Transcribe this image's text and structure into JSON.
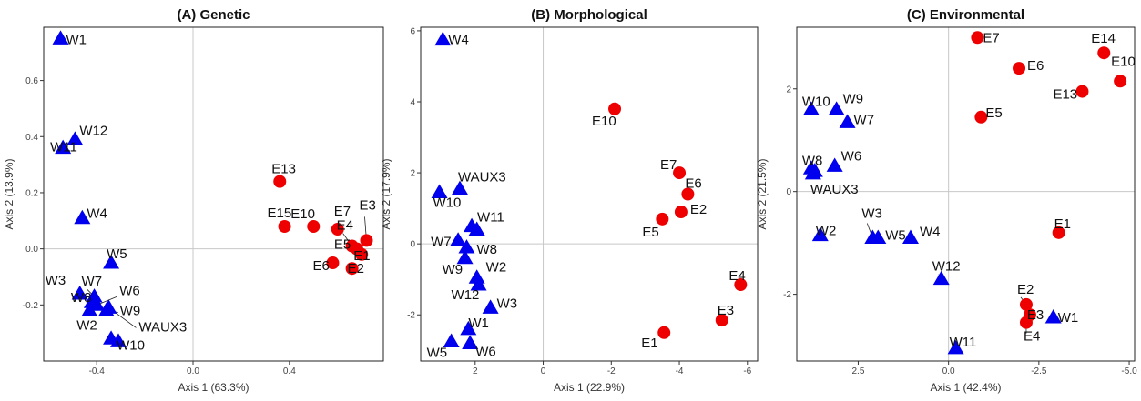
{
  "chart_data": [
    {
      "type": "scatter",
      "title": "(A) Genetic",
      "xlabel": "Axis 1 (63.3%)",
      "ylabel": "Axis 2 (13.9%)",
      "xlim": [
        -0.62,
        0.79
      ],
      "ylim": [
        -0.4,
        0.79
      ],
      "reverse_x": false,
      "xticks": [
        -0.4,
        0.0,
        0.4
      ],
      "xtick_labels": [
        "-0.4",
        "0.0",
        "0.4"
      ],
      "yticks": [
        -0.2,
        0.0,
        0.2,
        0.4,
        0.6
      ],
      "ytick_labels": [
        "-0.2",
        "0.0",
        "0.2",
        "0.4",
        "0.6"
      ],
      "grid": false,
      "zero_lines": true,
      "series": [
        {
          "group": "W",
          "marker": "triangle",
          "color": "#0000ee",
          "points": [
            {
              "label": "W1",
              "x": -0.55,
              "y": 0.75
            },
            {
              "label": "W12",
              "x": -0.49,
              "y": 0.39
            },
            {
              "label": "W11",
              "x": -0.54,
              "y": 0.36
            },
            {
              "label": "W4",
              "x": -0.46,
              "y": 0.11
            },
            {
              "label": "W5",
              "x": -0.34,
              "y": -0.05
            },
            {
              "label": "W3",
              "x": -0.47,
              "y": -0.16
            },
            {
              "label": "W8",
              "x": -0.42,
              "y": -0.19
            },
            {
              "label": "W7",
              "x": -0.41,
              "y": -0.17
            },
            {
              "label": "W6",
              "x": -0.4,
              "y": -0.2
            },
            {
              "label": "W9",
              "x": -0.36,
              "y": -0.22
            },
            {
              "label": "WAUX3",
              "x": -0.35,
              "y": -0.21
            },
            {
              "label": "W2",
              "x": -0.43,
              "y": -0.22
            },
            {
              "label": "W10",
              "x": -0.34,
              "y": -0.32
            },
            {
              "label": "",
              "x": -0.31,
              "y": -0.33
            }
          ]
        },
        {
          "group": "E",
          "marker": "circle",
          "color": "#ee0000",
          "points": [
            {
              "label": "E13",
              "x": 0.36,
              "y": 0.24
            },
            {
              "label": "E15",
              "x": 0.38,
              "y": 0.08
            },
            {
              "label": "E10",
              "x": 0.5,
              "y": 0.08
            },
            {
              "label": "E7",
              "x": 0.6,
              "y": 0.07
            },
            {
              "label": "E3",
              "x": 0.72,
              "y": 0.03
            },
            {
              "label": "E4",
              "x": 0.66,
              "y": 0.01
            },
            {
              "label": "E5",
              "x": 0.68,
              "y": 0.0
            },
            {
              "label": "E1",
              "x": 0.7,
              "y": -0.02
            },
            {
              "label": "E6",
              "x": 0.58,
              "y": -0.05
            },
            {
              "label": "E2",
              "x": 0.66,
              "y": -0.07
            }
          ]
        }
      ]
    },
    {
      "type": "scatter",
      "title": "(B) Morphological",
      "xlabel": "Axis 1 (22.9%)",
      "ylabel": "Axis 2 (17.9%)",
      "xlim": [
        3.6,
        -6.3
      ],
      "ylim": [
        -3.3,
        6.1
      ],
      "reverse_x": true,
      "xticks": [
        2,
        0,
        -2,
        -4,
        -6
      ],
      "xtick_labels": [
        "2",
        "0",
        "-2",
        "-4",
        "-6"
      ],
      "yticks": [
        -2,
        0,
        2,
        4,
        6
      ],
      "ytick_labels": [
        "-2",
        "0",
        "2",
        "4",
        "6"
      ],
      "grid": false,
      "zero_lines": true,
      "series": [
        {
          "group": "W",
          "marker": "triangle",
          "color": "#0000ee",
          "points": [
            {
              "label": "W4",
              "x": 2.95,
              "y": 5.75
            },
            {
              "label": "WAUX3",
              "x": 2.45,
              "y": 1.55
            },
            {
              "label": "W10",
              "x": 3.05,
              "y": 1.45
            },
            {
              "label": "W11",
              "x": 2.1,
              "y": 0.5
            },
            {
              "label": "",
              "x": 1.95,
              "y": 0.4
            },
            {
              "label": "W7",
              "x": 2.5,
              "y": 0.1
            },
            {
              "label": "W8",
              "x": 2.25,
              "y": -0.1
            },
            {
              "label": "W9",
              "x": 2.3,
              "y": -0.4
            },
            {
              "label": "W2",
              "x": 1.95,
              "y": -0.95
            },
            {
              "label": "W12",
              "x": 1.9,
              "y": -1.15
            },
            {
              "label": "W3",
              "x": 1.55,
              "y": -1.8
            },
            {
              "label": "W1",
              "x": 2.2,
              "y": -2.4
            },
            {
              "label": "W5",
              "x": 2.7,
              "y": -2.75
            },
            {
              "label": "W6",
              "x": 2.15,
              "y": -2.8
            }
          ]
        },
        {
          "group": "E",
          "marker": "circle",
          "color": "#ee0000",
          "points": [
            {
              "label": "E10",
              "x": -2.1,
              "y": 3.8
            },
            {
              "label": "E7",
              "x": -4.0,
              "y": 2.0
            },
            {
              "label": "E6",
              "x": -4.25,
              "y": 1.4
            },
            {
              "label": "E2",
              "x": -4.05,
              "y": 0.9
            },
            {
              "label": "E5",
              "x": -3.5,
              "y": 0.7
            },
            {
              "label": "E4",
              "x": -5.8,
              "y": -1.15
            },
            {
              "label": "E3",
              "x": -5.25,
              "y": -2.15
            },
            {
              "label": "E1",
              "x": -3.55,
              "y": -2.5
            }
          ]
        }
      ]
    },
    {
      "type": "scatter",
      "title": "(C) Environmental",
      "xlabel": "Axis 1 (42.4%)",
      "ylabel": "Axis 2 (21.5%)",
      "xlim": [
        4.2,
        -5.15
      ],
      "ylim": [
        -3.3,
        3.2
      ],
      "reverse_x": true,
      "xticks": [
        2.5,
        0.0,
        -2.5,
        -5.0
      ],
      "xtick_labels": [
        "2.5",
        "0.0",
        "-2.5",
        "-5.0"
      ],
      "yticks": [
        -2,
        0,
        2
      ],
      "ytick_labels": [
        "-2",
        "0",
        "2"
      ],
      "grid": false,
      "zero_lines": true,
      "series": [
        {
          "group": "W",
          "marker": "triangle",
          "color": "#0000ee",
          "points": [
            {
              "label": "W10",
              "x": 3.8,
              "y": 1.6
            },
            {
              "label": "W9",
              "x": 3.1,
              "y": 1.6
            },
            {
              "label": "W7",
              "x": 2.8,
              "y": 1.35
            },
            {
              "label": "W8",
              "x": 3.8,
              "y": 0.45
            },
            {
              "label": "",
              "x": 3.7,
              "y": 0.4
            },
            {
              "label": "W6",
              "x": 3.15,
              "y": 0.5
            },
            {
              "label": "WAUX3",
              "x": 3.75,
              "y": 0.35
            },
            {
              "label": "W2",
              "x": 3.55,
              "y": -0.85
            },
            {
              "label": "W3",
              "x": 2.1,
              "y": -0.9
            },
            {
              "label": "W5",
              "x": 1.95,
              "y": -0.9
            },
            {
              "label": "W4",
              "x": 1.05,
              "y": -0.9
            },
            {
              "label": "W12",
              "x": 0.2,
              "y": -1.7
            },
            {
              "label": "W11",
              "x": -0.2,
              "y": -3.05
            },
            {
              "label": "W1",
              "x": -2.9,
              "y": -2.45
            }
          ]
        },
        {
          "group": "E",
          "marker": "circle",
          "color": "#ee0000",
          "points": [
            {
              "label": "E7",
              "x": -0.8,
              "y": 3.0
            },
            {
              "label": "E14",
              "x": -4.3,
              "y": 2.7
            },
            {
              "label": "E6",
              "x": -1.95,
              "y": 2.4
            },
            {
              "label": "E10",
              "x": -4.75,
              "y": 2.15
            },
            {
              "label": "E13",
              "x": -3.7,
              "y": 1.95
            },
            {
              "label": "E5",
              "x": -0.9,
              "y": 1.45
            },
            {
              "label": "E1",
              "x": -3.05,
              "y": -0.8
            },
            {
              "label": "E2",
              "x": -2.15,
              "y": -2.2
            },
            {
              "label": "E3",
              "x": -2.25,
              "y": -2.4
            },
            {
              "label": "E4",
              "x": -2.15,
              "y": -2.55
            }
          ]
        }
      ]
    }
  ]
}
